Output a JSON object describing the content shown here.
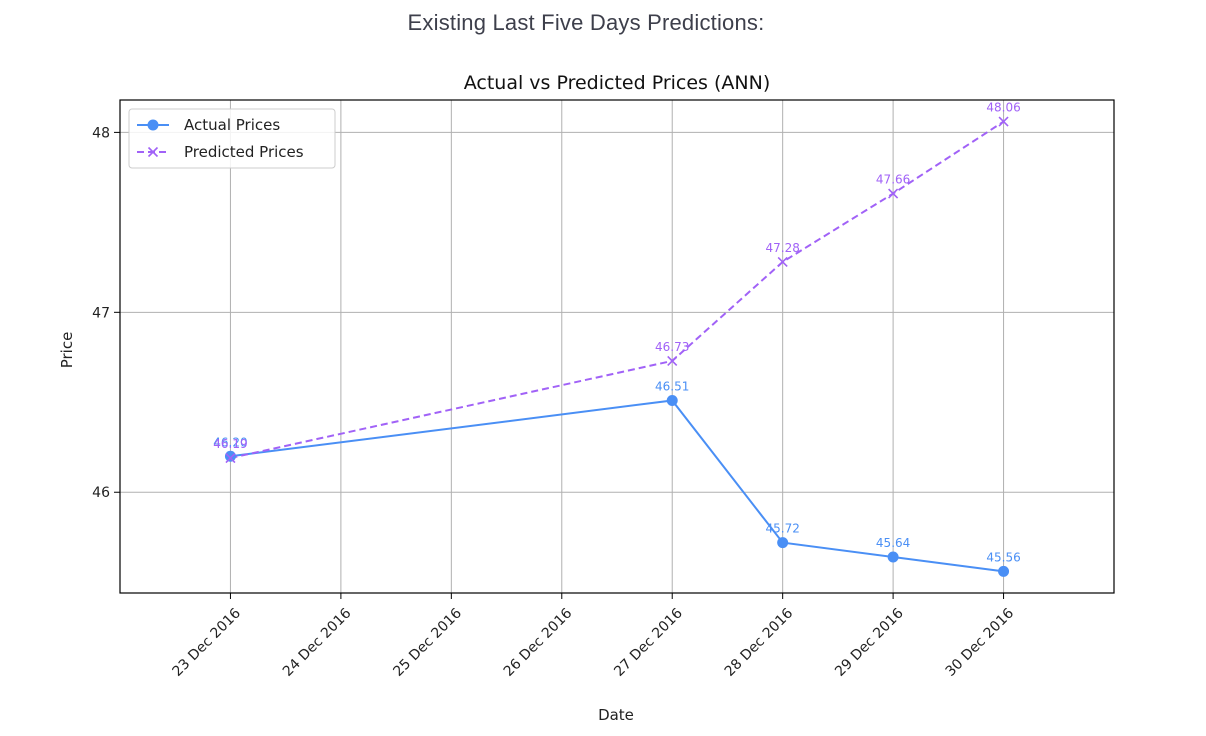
{
  "page": {
    "heading": "Existing Last Five Days Predictions:"
  },
  "chart_data": {
    "type": "line",
    "title": "Actual vs Predicted Prices (ANN)",
    "xlabel": "Date",
    "ylabel": "Price",
    "x": [
      "2016-12-23",
      "2016-12-27",
      "2016-12-28",
      "2016-12-29",
      "2016-12-30"
    ],
    "x_tick_labels": [
      "23 Dec 2016",
      "24 Dec 2016",
      "25 Dec 2016",
      "26 Dec 2016",
      "27 Dec 2016",
      "28 Dec 2016",
      "29 Dec 2016",
      "30 Dec 2016"
    ],
    "x_ticks": [
      "2016-12-23",
      "2016-12-24",
      "2016-12-25",
      "2016-12-26",
      "2016-12-27",
      "2016-12-28",
      "2016-12-29",
      "2016-12-30"
    ],
    "xlim": [
      "2016-12-22",
      "2016-12-31"
    ],
    "y_ticks": [
      46,
      47,
      48
    ],
    "ylim": [
      45.44,
      48.18
    ],
    "grid": true,
    "legend_position": "top-left",
    "series": [
      {
        "name": "Actual Prices",
        "values": [
          46.2,
          46.51,
          45.72,
          45.64,
          45.56
        ],
        "labels": [
          "46.20",
          "46.51",
          "45.72",
          "45.64",
          "45.56"
        ],
        "color": "#4a8ff5",
        "line_style": "solid",
        "marker": "circle"
      },
      {
        "name": "Predicted Prices",
        "values": [
          46.19,
          46.73,
          47.28,
          47.66,
          48.06
        ],
        "labels": [
          "46.19",
          "46.73",
          "47.28",
          "47.66",
          "48.06"
        ],
        "color": "#a162f7",
        "line_style": "dashed",
        "marker": "x"
      }
    ]
  }
}
